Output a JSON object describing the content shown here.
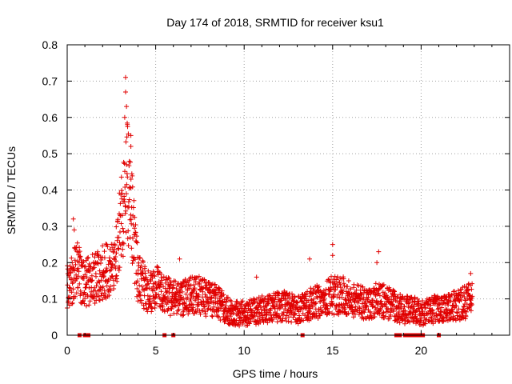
{
  "chart_data": {
    "type": "scatter",
    "title": "Day 174 of 2018, SRMTID for receiver ksu1",
    "xlabel": "GPS time / hours",
    "ylabel": "SRMTID / TECUs",
    "xlim": [
      0,
      25
    ],
    "ylim": [
      0,
      0.8
    ],
    "x_ticks": [
      0,
      5,
      10,
      15,
      20
    ],
    "y_ticks": [
      0,
      0.1,
      0.2,
      0.3,
      0.4,
      0.5,
      0.6,
      0.7,
      0.8
    ],
    "x_tick_labels": [
      "0",
      "5",
      "10",
      "15",
      "20"
    ],
    "y_tick_labels": [
      "0",
      "0.1",
      "0.2",
      "0.3",
      "0.4",
      "0.5",
      "0.6",
      "0.7",
      "0.8"
    ],
    "grid": true,
    "marker": "+",
    "color": "#e00000",
    "trend": {
      "x": [
        0,
        0.3,
        0.6,
        1.0,
        1.5,
        2.0,
        2.5,
        2.8,
        3.0,
        3.2,
        3.4,
        3.6,
        3.8,
        4.0,
        4.3,
        4.6,
        5.0,
        5.5,
        6.0,
        6.5,
        7.0,
        7.5,
        8.0,
        8.5,
        9.0,
        9.5,
        10.0,
        10.5,
        11.0,
        11.5,
        12.0,
        12.5,
        13.0,
        13.5,
        14.0,
        14.5,
        15.0,
        15.5,
        16.0,
        16.5,
        17.0,
        17.5,
        18.0,
        18.5,
        19.0,
        19.5,
        20.0,
        20.5,
        21.0,
        21.5,
        22.0,
        22.5,
        22.9
      ],
      "y": [
        0.14,
        0.16,
        0.18,
        0.14,
        0.16,
        0.17,
        0.18,
        0.22,
        0.3,
        0.38,
        0.42,
        0.35,
        0.25,
        0.16,
        0.14,
        0.12,
        0.13,
        0.12,
        0.1,
        0.1,
        0.11,
        0.11,
        0.1,
        0.09,
        0.07,
        0.06,
        0.06,
        0.065,
        0.07,
        0.075,
        0.08,
        0.08,
        0.07,
        0.08,
        0.09,
        0.1,
        0.11,
        0.11,
        0.1,
        0.09,
        0.09,
        0.1,
        0.09,
        0.08,
        0.07,
        0.07,
        0.06,
        0.07,
        0.07,
        0.08,
        0.08,
        0.09,
        0.1
      ]
    },
    "spikes": [
      {
        "x": 3.3,
        "y": 0.71
      },
      {
        "x": 3.3,
        "y": 0.67
      },
      {
        "x": 3.35,
        "y": 0.63
      },
      {
        "x": 3.25,
        "y": 0.6
      },
      {
        "x": 3.4,
        "y": 0.58
      },
      {
        "x": 3.6,
        "y": 0.55
      },
      {
        "x": 3.6,
        "y": 0.52
      },
      {
        "x": 0.35,
        "y": 0.32
      },
      {
        "x": 0.4,
        "y": 0.29
      },
      {
        "x": 15.0,
        "y": 0.25
      },
      {
        "x": 15.0,
        "y": 0.22
      },
      {
        "x": 17.6,
        "y": 0.23
      },
      {
        "x": 17.5,
        "y": 0.2
      },
      {
        "x": 13.7,
        "y": 0.21
      },
      {
        "x": 6.35,
        "y": 0.21
      },
      {
        "x": 10.7,
        "y": 0.16
      },
      {
        "x": 22.8,
        "y": 0.17
      }
    ],
    "zero_marks_x": [
      0.7,
      1.0,
      1.2,
      5.5,
      6.0,
      13.3,
      18.6,
      18.8,
      19.1,
      19.3,
      19.5,
      19.7,
      19.9,
      20.1,
      21.0
    ]
  }
}
